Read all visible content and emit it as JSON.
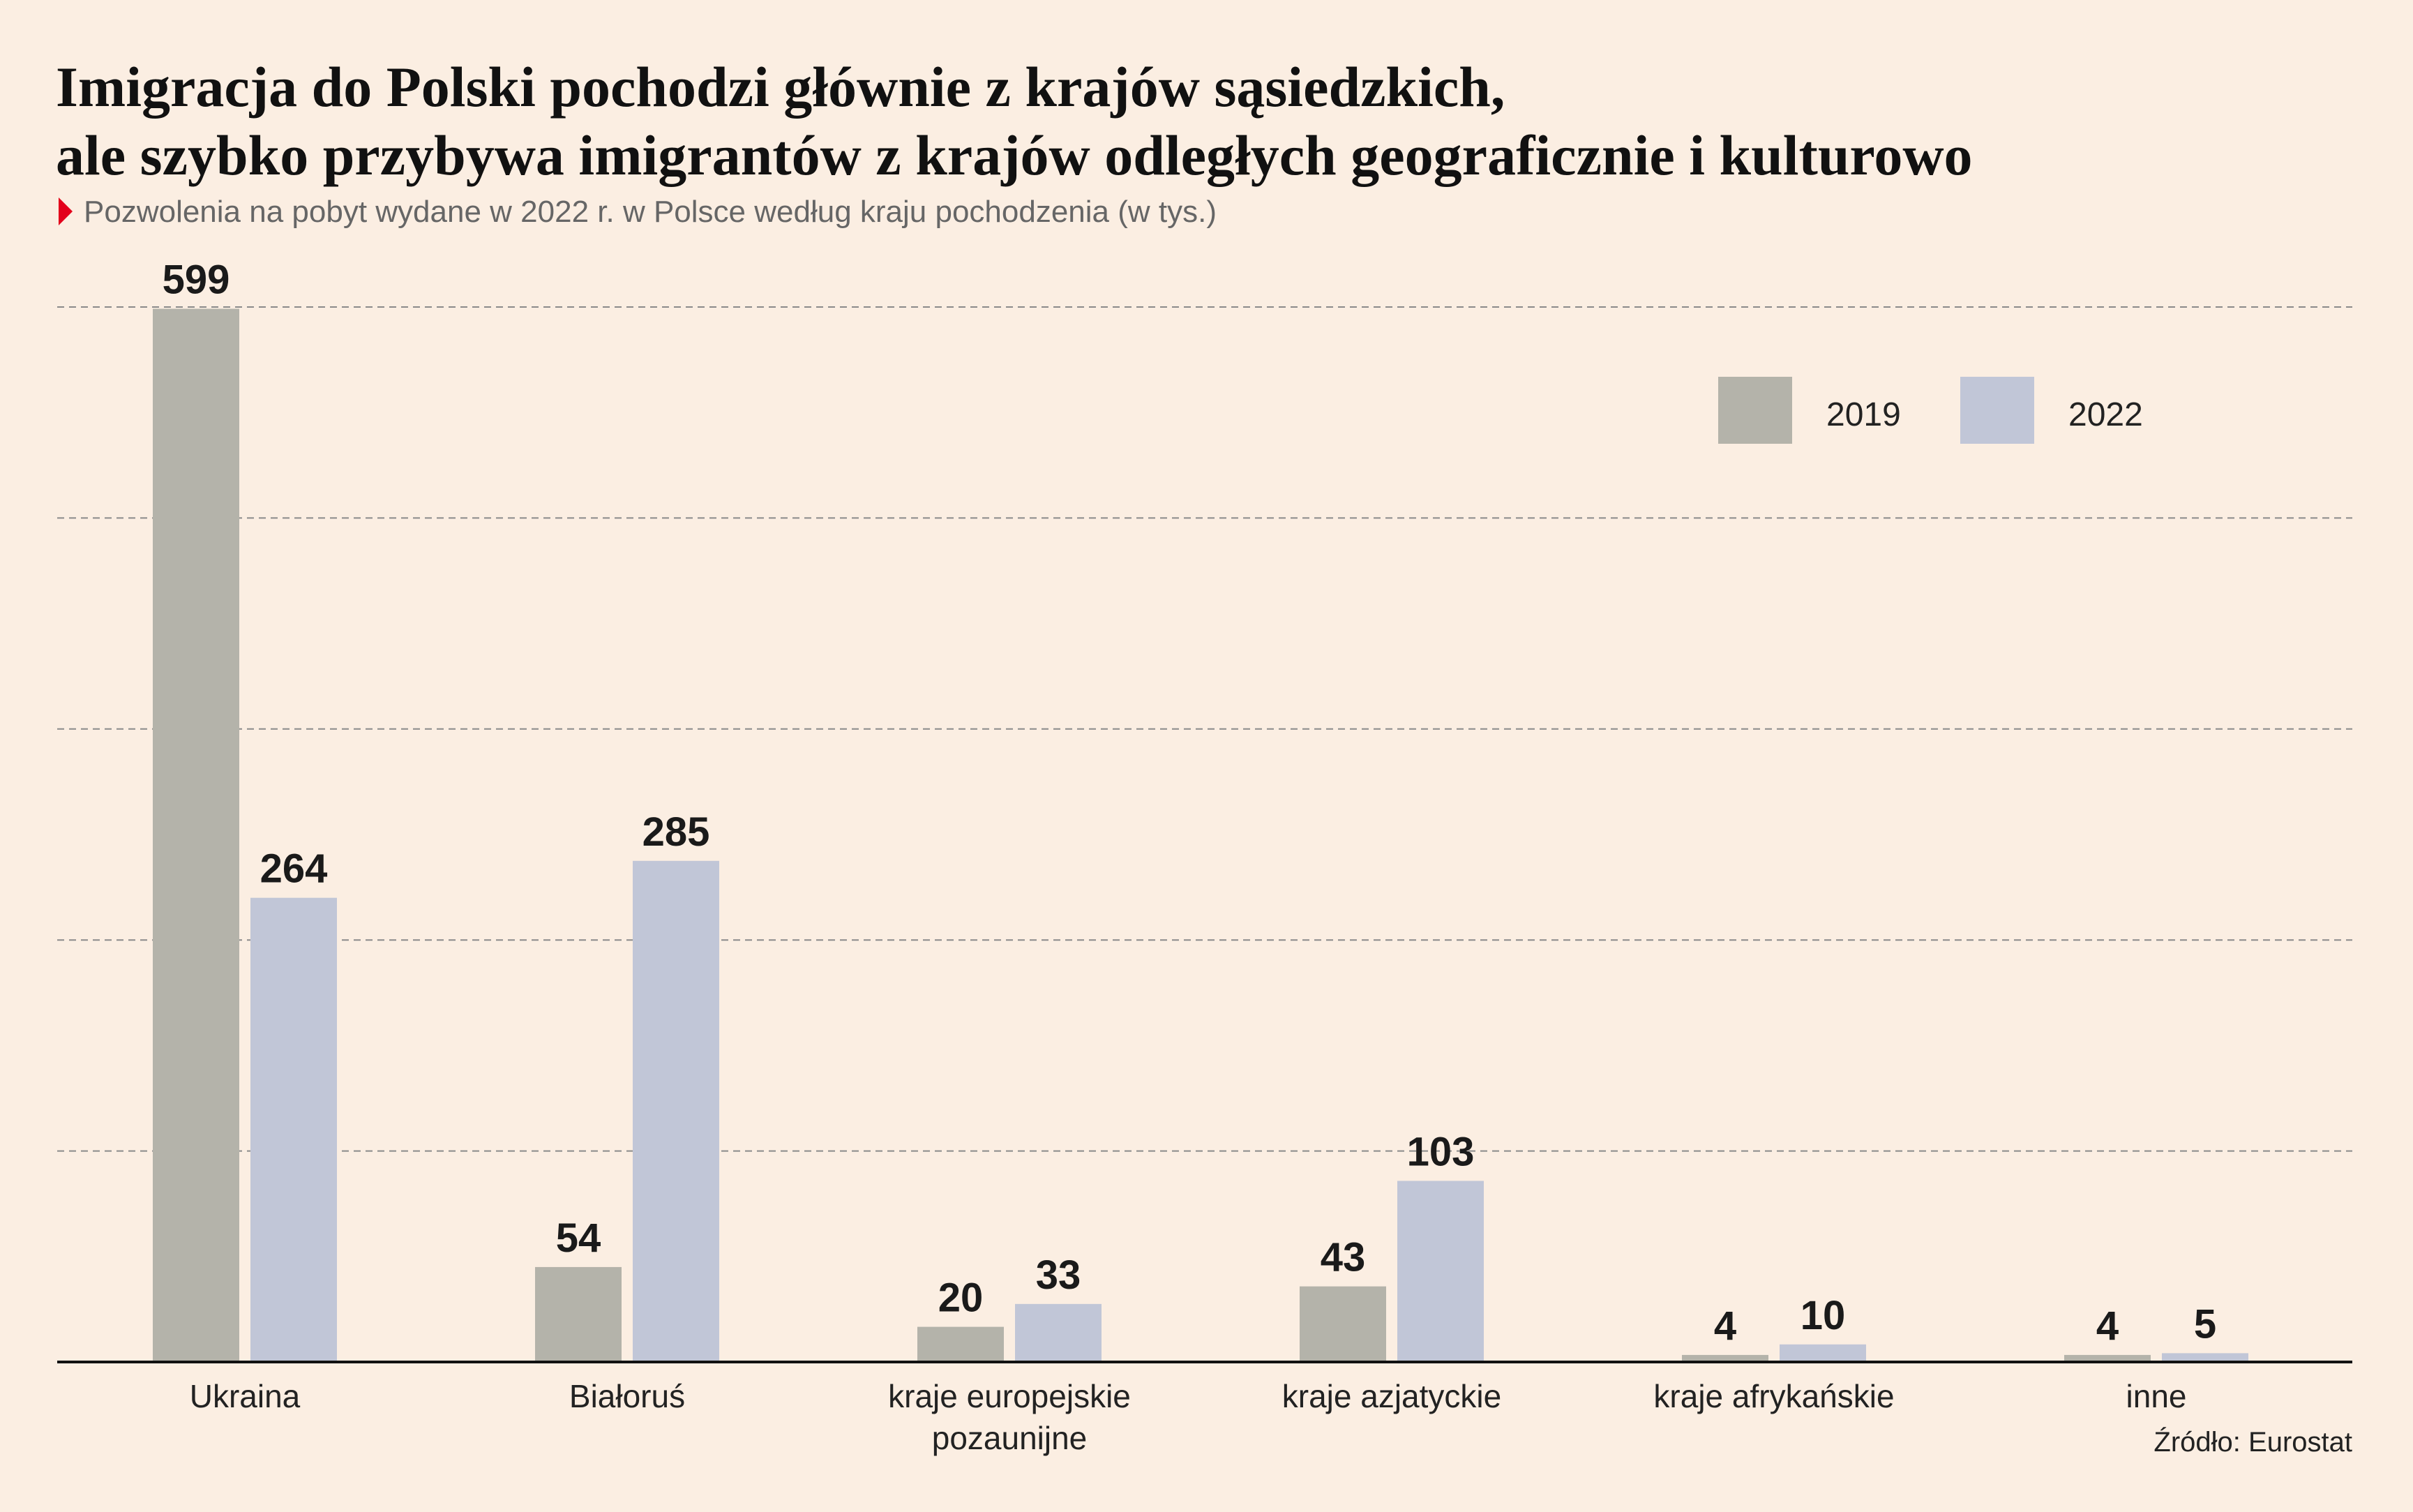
{
  "title_line1": "Imigracja do Polski pochodzi głównie z krajów sąsiedzkich,",
  "title_line2": "ale szybko przybywa imigrantów z krajów odległych geograficznie i kulturowo",
  "subtitle": "Pozwolenia na pobyt wydane w 2022 r. w Polsce według kraju pochodzenia (w tys.)",
  "source": "Źródło: Eurostat",
  "colors": {
    "background": "#fbeee2",
    "series_2019": "#b4b3aa",
    "series_2022": "#c1c6d7",
    "marker": "#e3001b",
    "grid": "#8a8a8a",
    "axis": "#111111"
  },
  "chart_data": {
    "type": "bar",
    "categories": [
      [
        "Ukraina"
      ],
      [
        "Białoruś"
      ],
      [
        "kraje europejskie",
        "pozaunijne"
      ],
      [
        "kraje azjatyckie"
      ],
      [
        "kraje afrykańskie"
      ],
      [
        "inne"
      ]
    ],
    "series": [
      {
        "name": "2019",
        "values": [
          599,
          54,
          20,
          43,
          4,
          4
        ]
      },
      {
        "name": "2022",
        "values": [
          264,
          285,
          33,
          103,
          10,
          5
        ]
      }
    ],
    "ylim": [
      0,
      600
    ],
    "gridlines": [
      120,
      240,
      360,
      480,
      600
    ],
    "grid": true,
    "legend": "top-right",
    "data_labels": true
  }
}
